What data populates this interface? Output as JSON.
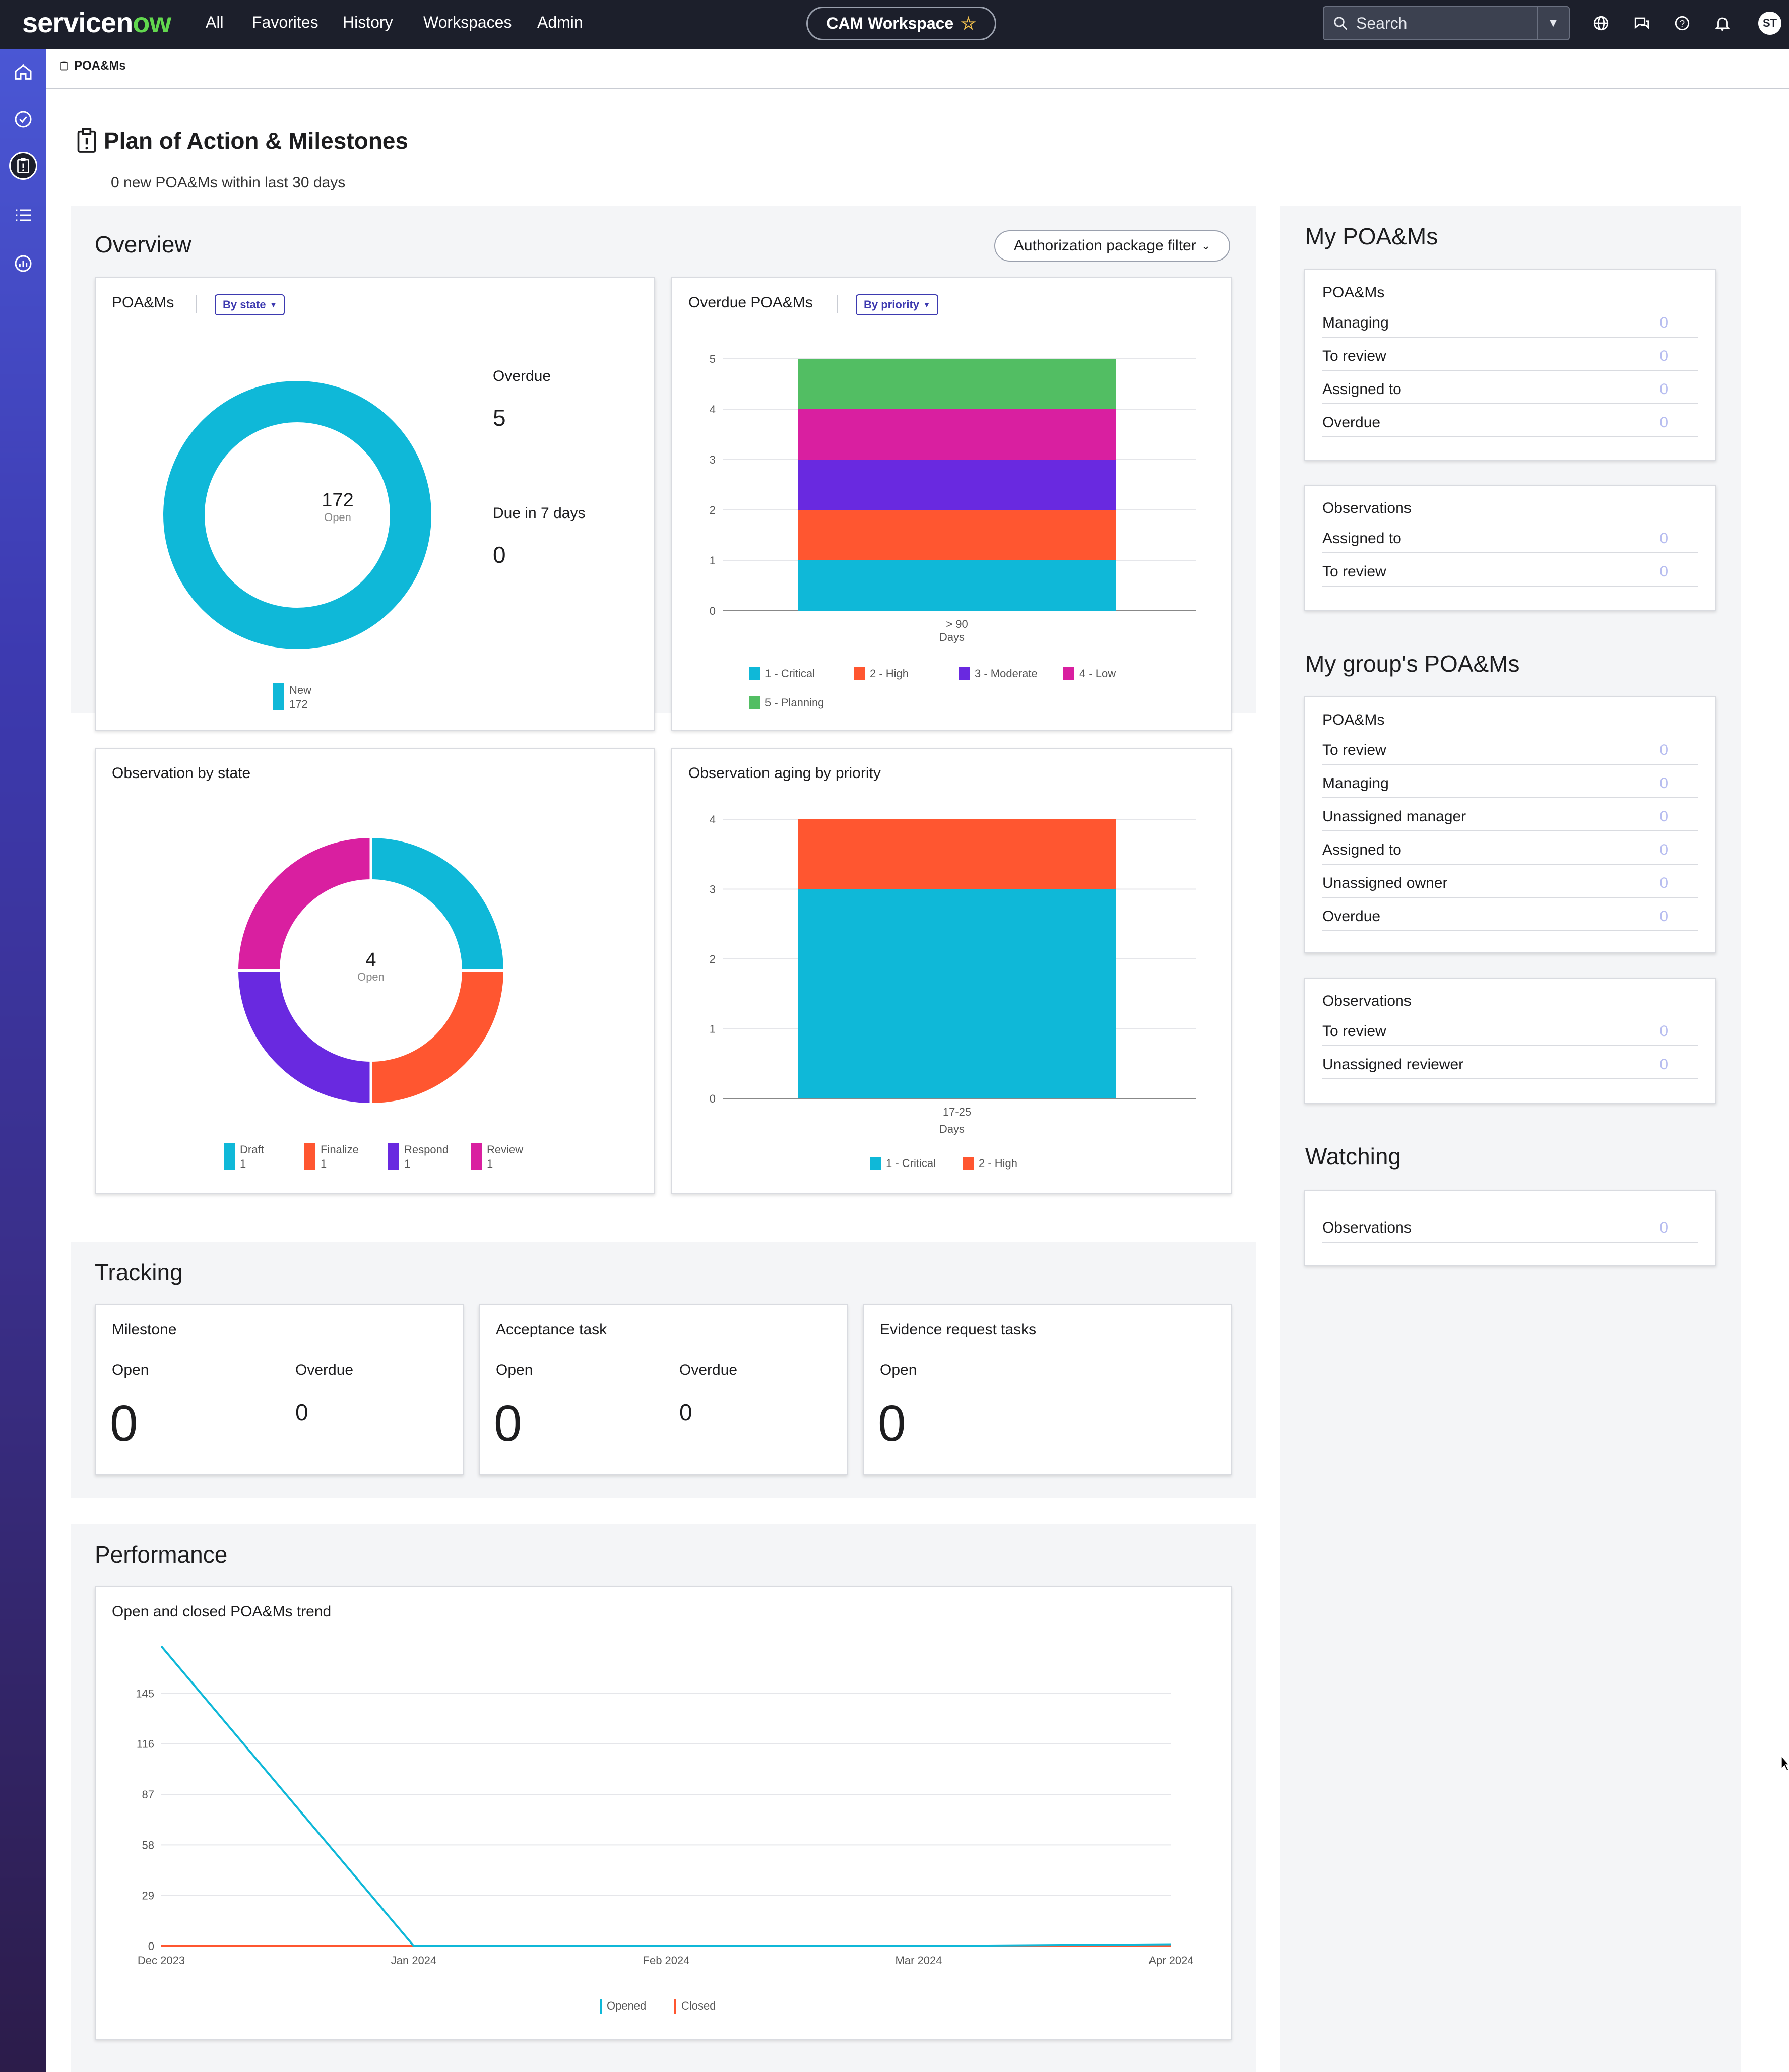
{
  "topbar": {
    "logo_text": "servicen",
    "logo_accent": "ow",
    "nav": [
      "All",
      "Favorites",
      "History",
      "Workspaces",
      "Admin"
    ],
    "workspace": "CAM Workspace",
    "search_placeholder": "Search",
    "avatar": "ST"
  },
  "breadcrumb": "POA&Ms",
  "page": {
    "title": "Plan of Action & Milestones",
    "subtitle": "0 new POA&Ms within last 30 days"
  },
  "overview": {
    "title": "Overview",
    "filter_label": "Authorization package filter",
    "poams_card": {
      "title": "POA&Ms",
      "pill": "By state",
      "center_value": "172",
      "center_label": "Open",
      "overdue_label": "Overdue",
      "overdue_value": "5",
      "due_label": "Due in 7 days",
      "due_value": "0",
      "legend": [
        {
          "label": "New",
          "value": "172",
          "color": "#0fb8d8"
        }
      ]
    },
    "overdue_card": {
      "title": "Overdue POA&Ms",
      "pill": "By priority",
      "xlabel": "Days",
      "legend": [
        "1 - Critical",
        "2 - High",
        "3 - Moderate",
        "4 - Low",
        "5 - Planning"
      ]
    },
    "obs_state_card": {
      "title": "Observation by state",
      "center_value": "4",
      "center_label": "Open",
      "legend": [
        {
          "label": "Draft",
          "value": "1",
          "color": "#0fb8d8"
        },
        {
          "label": "Finalize",
          "value": "1",
          "color": "#ff5630"
        },
        {
          "label": "Respond",
          "value": "1",
          "color": "#6929e0"
        },
        {
          "label": "Review",
          "value": "1",
          "color": "#d91fa0"
        }
      ]
    },
    "obs_aging_card": {
      "title": "Observation aging by priority",
      "xlabel": "Days",
      "legend": [
        "1 - Critical",
        "2 - High"
      ]
    }
  },
  "chart_data": [
    {
      "type": "pie",
      "title": "POA&Ms",
      "labels": [
        "New"
      ],
      "values": [
        172
      ],
      "colors": [
        "#0fb8d8"
      ]
    },
    {
      "type": "bar",
      "title": "Overdue POA&Ms",
      "stacked": true,
      "categories": [
        "> 90"
      ],
      "xlabel": "Days",
      "ylim": [
        0,
        5
      ],
      "yticks": [
        "0",
        "1",
        "2",
        "3",
        "4",
        "5"
      ],
      "series": [
        {
          "name": "1 - Critical",
          "values": [
            1
          ],
          "color": "#0fb8d8"
        },
        {
          "name": "2 - High",
          "values": [
            1
          ],
          "color": "#ff5630"
        },
        {
          "name": "3 - Moderate",
          "values": [
            1
          ],
          "color": "#6929e0"
        },
        {
          "name": "4 - Low",
          "values": [
            1
          ],
          "color": "#d91fa0"
        },
        {
          "name": "5 - Planning",
          "values": [
            1
          ],
          "color": "#52be63"
        }
      ]
    },
    {
      "type": "pie",
      "title": "Observation by state",
      "labels": [
        "Draft",
        "Finalize",
        "Respond",
        "Review"
      ],
      "values": [
        1,
        1,
        1,
        1
      ],
      "colors": [
        "#0fb8d8",
        "#ff5630",
        "#6929e0",
        "#d91fa0"
      ]
    },
    {
      "type": "bar",
      "title": "Observation aging by priority",
      "stacked": true,
      "categories": [
        "17-25"
      ],
      "xlabel": "Days",
      "ylim": [
        0,
        4
      ],
      "yticks": [
        "0",
        "1",
        "2",
        "3",
        "4"
      ],
      "series": [
        {
          "name": "1 - Critical",
          "values": [
            3
          ],
          "color": "#0fb8d8"
        },
        {
          "name": "2 - High",
          "values": [
            1
          ],
          "color": "#ff5630"
        }
      ]
    },
    {
      "type": "line",
      "title": "Open and closed POA&Ms trend",
      "x": [
        "Dec 2023",
        "Jan 2024",
        "Feb 2024",
        "Mar 2024",
        "Apr 2024"
      ],
      "yticks": [
        "0",
        "29",
        "58",
        "87",
        "116",
        "145"
      ],
      "ylim": [
        0,
        174
      ],
      "series": [
        {
          "name": "Opened",
          "values": [
            172,
            0,
            0,
            0,
            1
          ],
          "color": "#0fb8d8"
        },
        {
          "name": "Closed",
          "values": [
            0,
            0,
            0,
            0,
            0
          ],
          "color": "#ff5630"
        }
      ]
    }
  ],
  "tracking": {
    "title": "Tracking",
    "milestone": {
      "title": "Milestone",
      "open_label": "Open",
      "open_value": "0",
      "overdue_label": "Overdue",
      "overdue_value": "0"
    },
    "acceptance": {
      "title": "Acceptance task",
      "open_label": "Open",
      "open_value": "0",
      "overdue_label": "Overdue",
      "overdue_value": "0"
    },
    "evidence": {
      "title": "Evidence request tasks",
      "open_label": "Open",
      "open_value": "0"
    }
  },
  "performance": {
    "title": "Performance",
    "trend_title": "Open and closed POA&Ms trend",
    "legend": [
      "Opened",
      "Closed"
    ]
  },
  "my_poams": {
    "title": "My POA&Ms",
    "poams": {
      "title": "POA&Ms",
      "rows": [
        {
          "label": "Managing",
          "value": "0"
        },
        {
          "label": "To review",
          "value": "0"
        },
        {
          "label": "Assigned to",
          "value": "0"
        },
        {
          "label": "Overdue",
          "value": "0"
        }
      ]
    },
    "observations": {
      "title": "Observations",
      "rows": [
        {
          "label": "Assigned to",
          "value": "0"
        },
        {
          "label": "To review",
          "value": "0"
        }
      ]
    }
  },
  "group_poams": {
    "title": "My group's POA&Ms",
    "poams": {
      "title": "POA&Ms",
      "rows": [
        {
          "label": "To review",
          "value": "0"
        },
        {
          "label": "Managing",
          "value": "0"
        },
        {
          "label": "Unassigned manager",
          "value": "0"
        },
        {
          "label": "Assigned to",
          "value": "0"
        },
        {
          "label": "Unassigned owner",
          "value": "0"
        },
        {
          "label": "Overdue",
          "value": "0"
        }
      ]
    },
    "observations": {
      "title": "Observations",
      "rows": [
        {
          "label": "To review",
          "value": "0"
        },
        {
          "label": "Unassigned reviewer",
          "value": "0"
        }
      ]
    }
  },
  "watching": {
    "title": "Watching",
    "rows": [
      {
        "label": "Observations",
        "value": "0"
      }
    ]
  }
}
